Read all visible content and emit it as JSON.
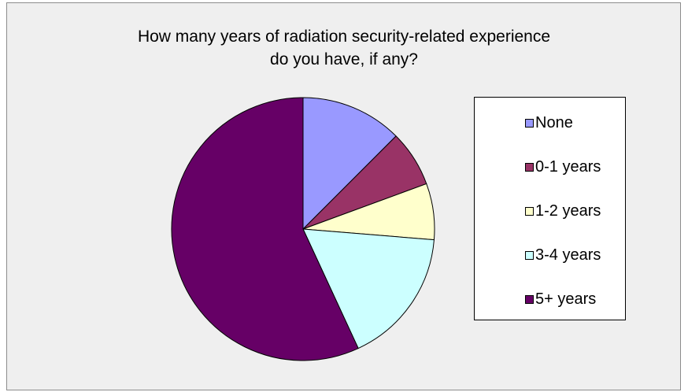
{
  "chart_data": {
    "type": "pie",
    "title_lines": [
      "How many years of radiation security-related experience",
      "do you have, if any?"
    ],
    "series": [
      {
        "name": "None",
        "value": 12.5,
        "color": "#9999ff"
      },
      {
        "name": "0-1 years",
        "value": 6.9,
        "color": "#993366"
      },
      {
        "name": "1-2 years",
        "value": 6.9,
        "color": "#ffffcc"
      },
      {
        "name": "3-4 years",
        "value": 16.8,
        "color": "#ccffff"
      },
      {
        "name": "5+ years",
        "value": 56.9,
        "color": "#660066"
      }
    ],
    "legend_position": "right"
  }
}
